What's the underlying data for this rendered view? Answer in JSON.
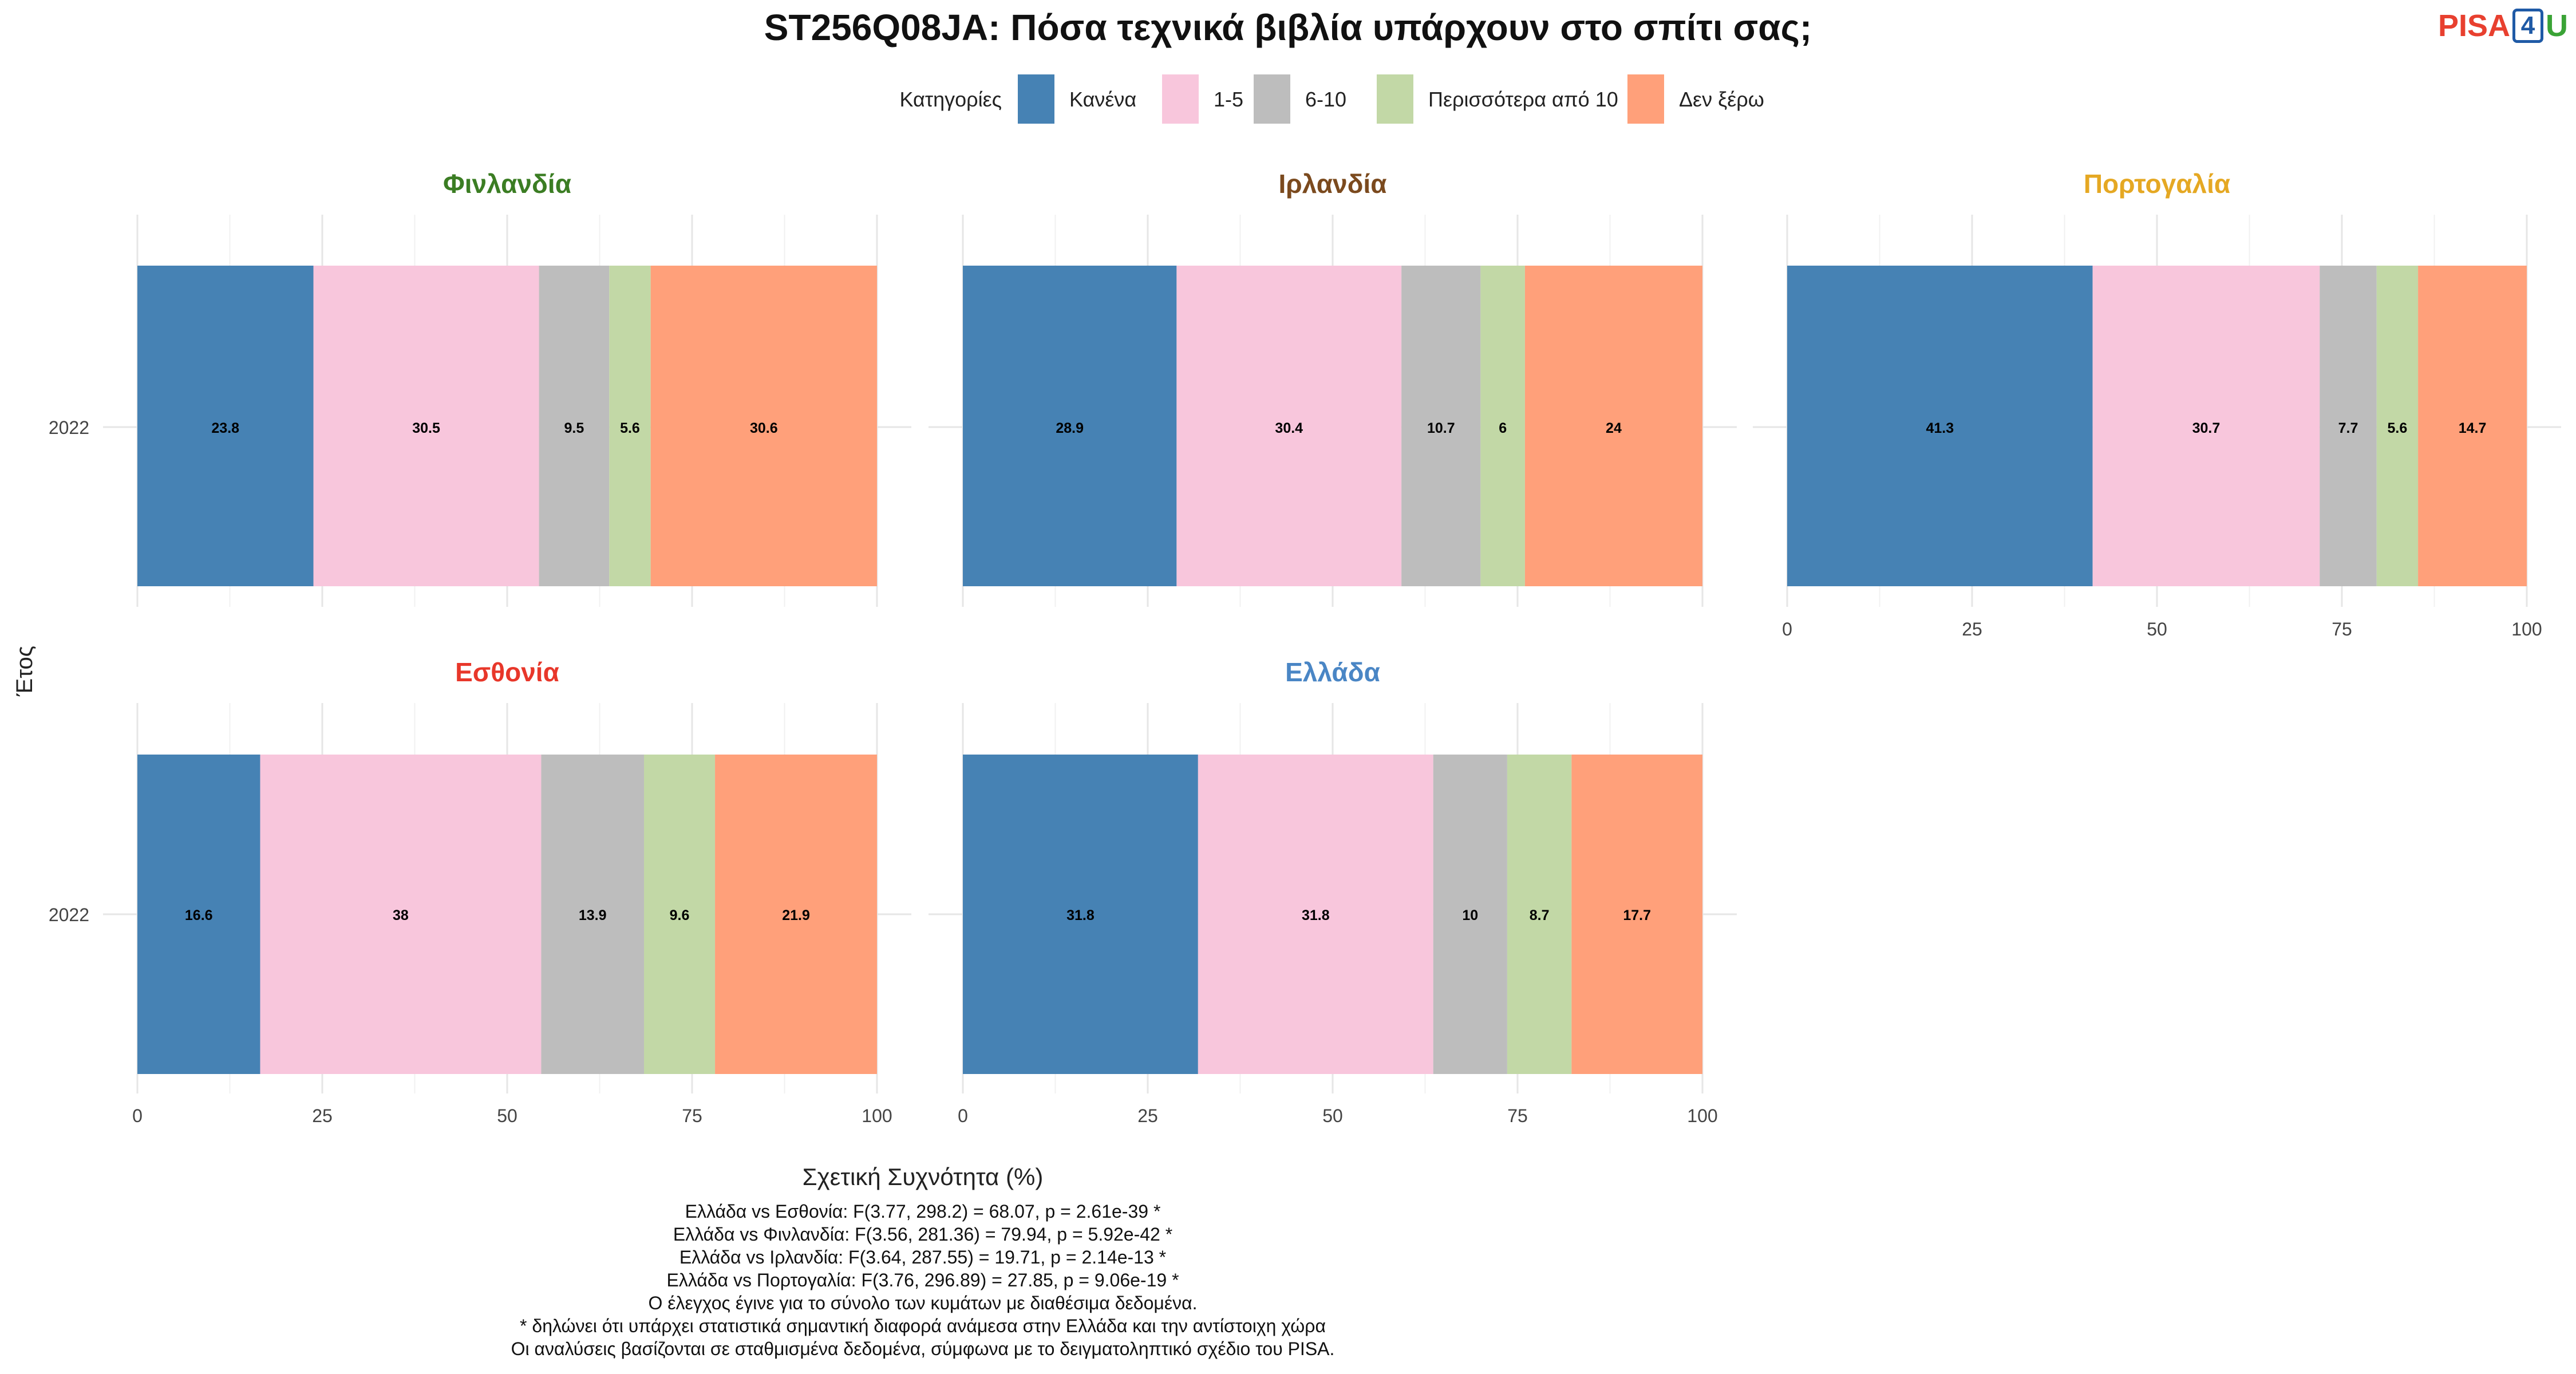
{
  "title": "ST256Q08JA: Πόσα τεχνικά βιβλία υπάρχουν στο σπίτι σας;",
  "logo": {
    "part1": "PISA",
    "part2": "4",
    "part3": "U"
  },
  "legend": {
    "title": "Κατηγορίες",
    "items": [
      {
        "label": "Κανένα",
        "color": "#4682b4"
      },
      {
        "label": "1-5",
        "color": "#f8c6dc"
      },
      {
        "label": "6-10",
        "color": "#bdbdbd"
      },
      {
        "label": "Περισσότερα από 10",
        "color": "#c2d8a6"
      },
      {
        "label": "Δεν ξέρω",
        "color": "#ffa07a"
      }
    ]
  },
  "chart_data": {
    "type": "bar",
    "orientation": "horizontal",
    "stacked": true,
    "xlabel": "Σχετική Συχνότητα (%)",
    "ylabel": "Έτος",
    "xlim": [
      0,
      100
    ],
    "xticks": [
      0,
      25,
      50,
      75,
      100
    ],
    "categories": [
      "2022"
    ],
    "grid": true,
    "legend_position": "top",
    "series_names": [
      "Κανένα",
      "1-5",
      "6-10",
      "Περισσότερα από 10",
      "Δεν ξέρω"
    ],
    "panels": [
      {
        "title": "Φινλανδία",
        "title_color": "#3b7d23",
        "values": [
          23.8,
          30.5,
          9.5,
          5.6,
          30.6
        ]
      },
      {
        "title": "Ιρλανδία",
        "title_color": "#7b4a1e",
        "values": [
          28.9,
          30.4,
          10.7,
          6,
          24
        ]
      },
      {
        "title": "Πορτογαλία",
        "title_color": "#e5a823",
        "values": [
          41.3,
          30.7,
          7.7,
          5.6,
          14.7
        ]
      },
      {
        "title": "Εσθονία",
        "title_color": "#e8372a",
        "values": [
          16.6,
          38,
          13.9,
          9.6,
          21.9
        ]
      },
      {
        "title": "Ελλάδα",
        "title_color": "#4a86c5",
        "values": [
          31.8,
          31.8,
          10,
          8.7,
          17.7
        ]
      }
    ]
  },
  "footnotes": [
    "Ελλάδα vs Εσθονία: F(3.77, 298.2) = 68.07, p = 2.61e-39 *",
    "Ελλάδα vs Φινλανδία: F(3.56, 281.36) = 79.94, p = 5.92e-42 *",
    "Ελλάδα vs Ιρλανδία: F(3.64, 287.55) = 19.71, p = 2.14e-13 *",
    "Ελλάδα vs Πορτογαλία: F(3.76, 296.89) = 27.85, p = 9.06e-19 *",
    "Ο έλεγχος έγινε για το σύνολο των κυμάτων με διαθέσιμα δεδομένα.",
    "* δηλώνει ότι υπάρχει στατιστικά σημαντική διαφορά ανάμεσα στην Ελλάδα και την αντίστοιχη χώρα",
    "Οι αναλύσεις βασίζονται σε σταθμισμένα δεδομένα, σύμφωνα με το δειγματοληπτικό σχέδιο του PISA."
  ]
}
